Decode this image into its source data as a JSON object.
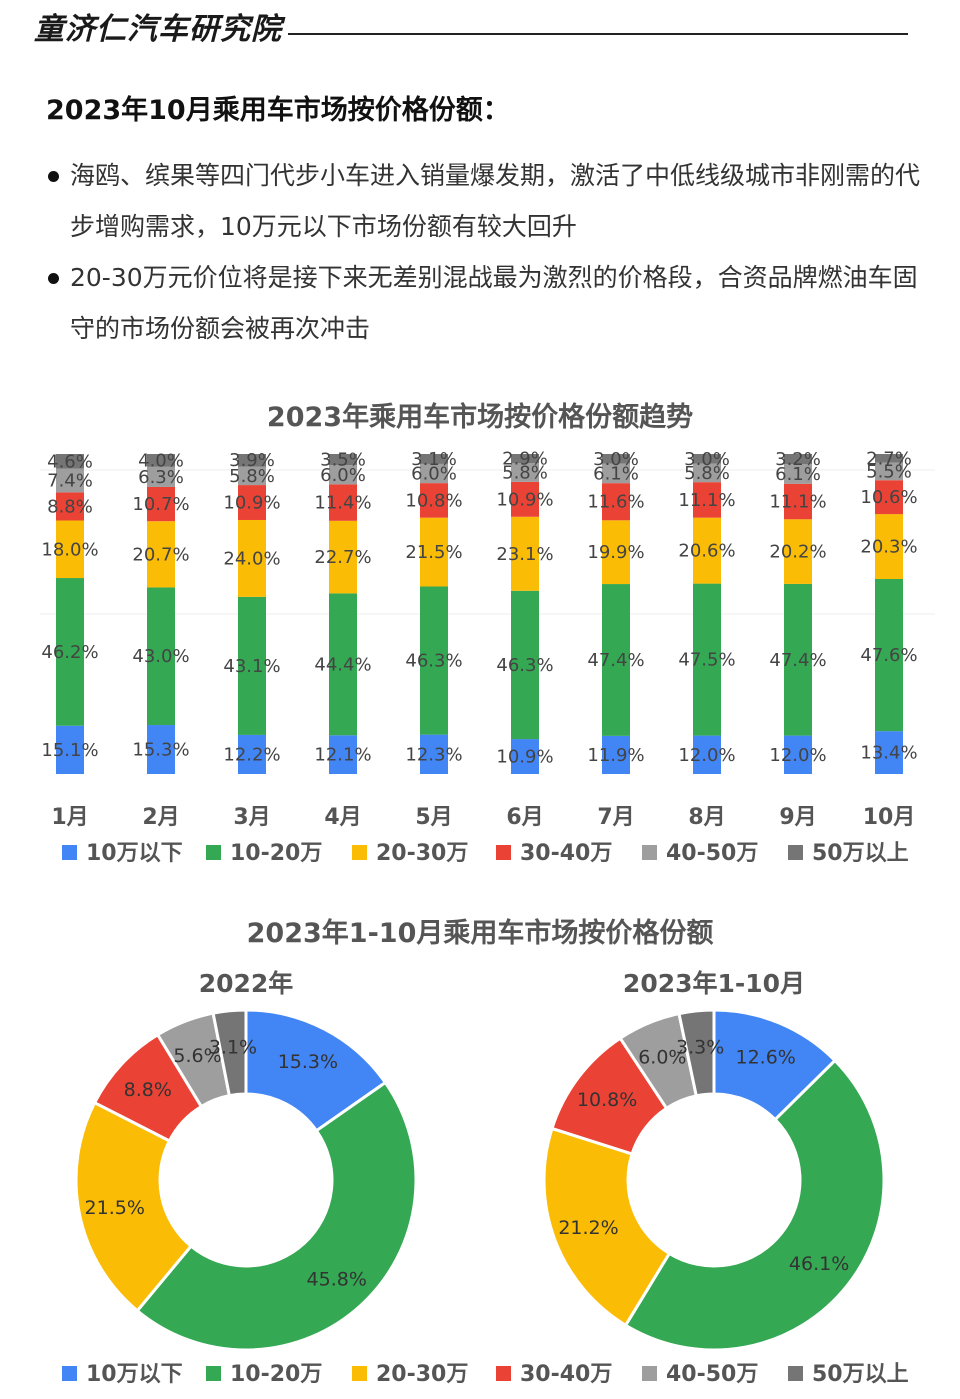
{
  "header": {
    "brand": "童济仁汽车研究院"
  },
  "heading": "2023年10月乘用车市场按价格份额：",
  "bullets": [
    "海鸥、缤果等四门代步小车进入销量爆发期，激活了中低线级城市非刚需的代步增购需求，10万元以下市场份额有较大回升",
    "20-30万元价位将是接下来无差别混战最为激烈的价格段，合资品牌燃油车固守的市场份额会被再次冲击"
  ],
  "colors": [
    "#4285F4",
    "#34A853",
    "#FBBC05",
    "#EA4335",
    "#9E9E9E",
    "#757575"
  ],
  "chart_data": [
    {
      "type": "bar",
      "stacked": true,
      "title": "2023年乘用车市场按价格份额趋势",
      "categories": [
        "1月",
        "2月",
        "3月",
        "4月",
        "5月",
        "6月",
        "7月",
        "8月",
        "9月",
        "10月"
      ],
      "series": [
        {
          "name": "10万以下",
          "values": [
            15.1,
            15.3,
            12.2,
            12.1,
            12.3,
            10.9,
            11.9,
            12.0,
            12.0,
            13.4
          ]
        },
        {
          "name": "10-20万",
          "values": [
            46.2,
            43.0,
            43.1,
            44.4,
            46.3,
            46.3,
            47.4,
            47.5,
            47.4,
            47.6
          ]
        },
        {
          "name": "20-30万",
          "values": [
            18.0,
            20.7,
            24.0,
            22.7,
            21.5,
            23.1,
            19.9,
            20.6,
            20.2,
            20.3
          ]
        },
        {
          "name": "30-40万",
          "values": [
            8.8,
            10.7,
            10.9,
            11.4,
            10.8,
            10.9,
            11.6,
            11.1,
            11.1,
            10.6
          ]
        },
        {
          "name": "40-50万",
          "values": [
            7.4,
            6.3,
            5.8,
            6.0,
            6.0,
            5.8,
            6.1,
            5.8,
            6.1,
            5.5
          ]
        },
        {
          "name": "50万以上",
          "values": [
            4.6,
            4.0,
            3.9,
            3.5,
            3.1,
            2.9,
            3.0,
            3.0,
            3.2,
            2.7
          ]
        }
      ],
      "unit": "%",
      "ylim": [
        0,
        100
      ],
      "legend": "bottom"
    },
    {
      "type": "pie",
      "donut": true,
      "title": "2023年1-10月乘用车市场按价格份额",
      "charts": [
        {
          "name": "2022年",
          "labels": [
            "10万以下",
            "10-20万",
            "20-30万",
            "30-40万",
            "40-50万",
            "50万以上"
          ],
          "values": [
            15.3,
            45.8,
            21.5,
            8.8,
            5.6,
            3.1
          ]
        },
        {
          "name": "2023年1-10月",
          "labels": [
            "10万以下",
            "10-20万",
            "20-30万",
            "30-40万",
            "40-50万",
            "50万以上"
          ],
          "values": [
            12.6,
            46.1,
            21.2,
            10.8,
            6.0,
            3.3
          ]
        }
      ],
      "unit": "%",
      "legend": "bottom"
    }
  ]
}
